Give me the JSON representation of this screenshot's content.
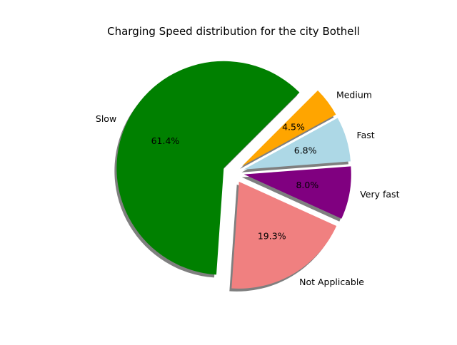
{
  "chart_data": {
    "type": "pie",
    "title": "Charging Speed distribution for the city Bothell",
    "slices": [
      {
        "label": "Slow",
        "value": 61.4,
        "pct_label": "61.4%",
        "color": "#008000",
        "explode": true
      },
      {
        "label": "Not Applicable",
        "value": 19.3,
        "pct_label": "19.3%",
        "color": "#f08080",
        "explode": true
      },
      {
        "label": "Very fast",
        "value": 8.0,
        "pct_label": "8.0%",
        "color": "#800080",
        "explode": true
      },
      {
        "label": "Fast",
        "value": 6.8,
        "pct_label": "6.8%",
        "color": "#add8e6",
        "explode": true
      },
      {
        "label": "Medium",
        "value": 4.5,
        "pct_label": "4.5%",
        "color": "#ffa500",
        "explode": true
      }
    ],
    "start_angle_deg": 45,
    "direction": "counterclockwise",
    "shadow": true,
    "legend": "none"
  }
}
